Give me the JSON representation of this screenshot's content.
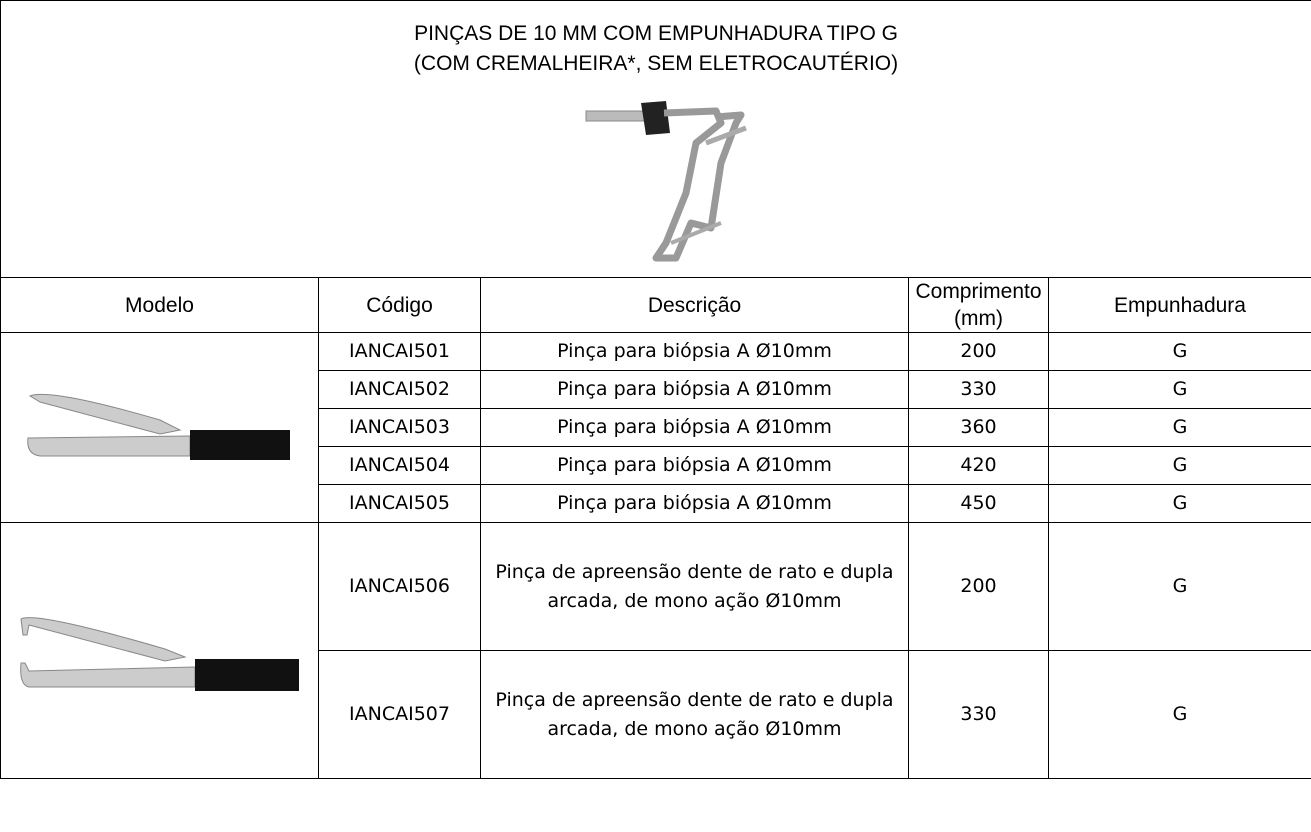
{
  "header": {
    "title_lines": [
      "PINÇAS DE 10 MM COM EMPUNHADURA TIPO G",
      "(COM CREMALHEIRA*, SEM ELETROCAUTÉRIO)"
    ]
  },
  "table": {
    "columns": [
      "Modelo",
      "Código",
      "Descrição",
      "Comprimento (mm)",
      "Empunhadura"
    ],
    "rows": [
      [
        "IANCAI501",
        "Pinça para biópsia A Ø10mm",
        200,
        "G"
      ],
      [
        "IANCAI502",
        "Pinça para biópsia A Ø10mm",
        330,
        "G"
      ],
      [
        "IANCAI503",
        "Pinça para biópsia A Ø10mm",
        360,
        "G"
      ],
      [
        "IANCAI504",
        "Pinça para biópsia A Ø10mm",
        420,
        "G"
      ],
      [
        "IANCAI505",
        "Pinça para biópsia A Ø10mm",
        450,
        "G"
      ],
      [
        "IANCAI506",
        "Pinça de apreensão dente de rato e dupla arcada, de mono ação Ø10mm",
        200,
        "G"
      ],
      [
        "IANCAI507",
        "Pinça de apreensão dente de rato e dupla arcada, de mono ação Ø10mm",
        330,
        "G"
      ]
    ]
  }
}
